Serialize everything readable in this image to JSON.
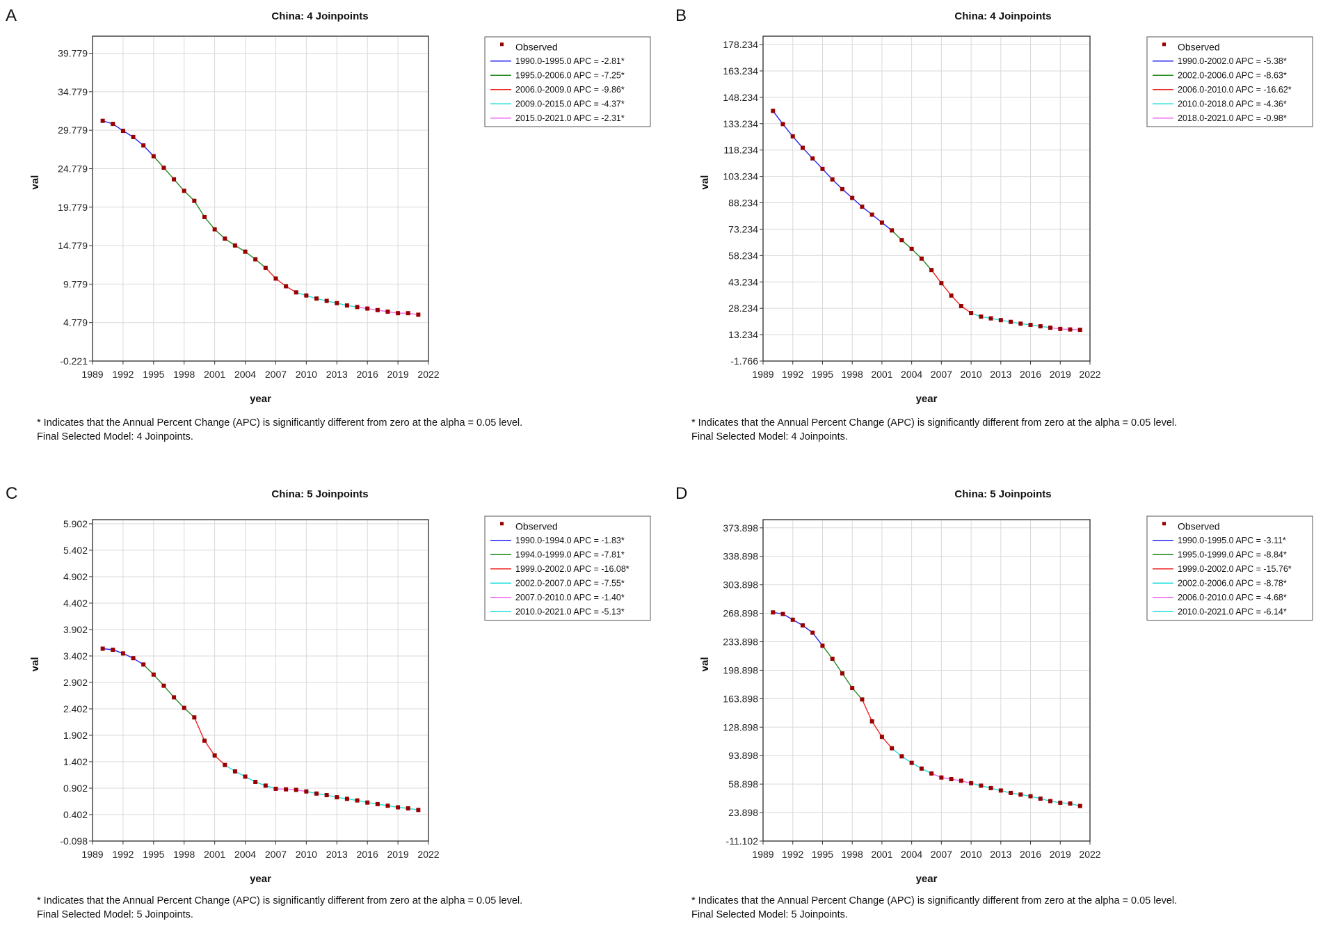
{
  "note_text": "* Indicates that the Annual Percent Change (APC) is significantly different from zero at the alpha = 0.05 level.",
  "legend_observed": "Observed",
  "segment_colors": [
    "#2222ee",
    "#228822",
    "#ee2222",
    "#22dddd",
    "#ee66ee",
    "#22dddd"
  ],
  "marker_color": "#990000",
  "chart_data": [
    {
      "panel": "A",
      "type": "line",
      "title": "China: 4 Joinpoints",
      "xlabel": "year",
      "ylabel": "val",
      "xlim": [
        1989,
        2022
      ],
      "xticks": [
        1989,
        1992,
        1995,
        1998,
        2001,
        2004,
        2007,
        2010,
        2013,
        2016,
        2019,
        2022
      ],
      "ylim": [
        -0.221,
        42.0
      ],
      "yticks": [
        "-0.221",
        "4.779",
        "9.779",
        "14.779",
        "19.779",
        "24.779",
        "29.779",
        "34.779",
        "39.779"
      ],
      "x": [
        1990,
        1991,
        1992,
        1993,
        1994,
        1995,
        1996,
        1997,
        1998,
        1999,
        2000,
        2001,
        2002,
        2003,
        2004,
        2005,
        2006,
        2007,
        2008,
        2009,
        2010,
        2011,
        2012,
        2013,
        2014,
        2015,
        2016,
        2017,
        2018,
        2019,
        2020,
        2021
      ],
      "observed": [
        31.0,
        30.6,
        29.7,
        28.9,
        27.8,
        26.4,
        24.9,
        23.4,
        21.9,
        20.6,
        18.5,
        16.9,
        15.7,
        14.8,
        14.0,
        13.0,
        11.9,
        10.5,
        9.5,
        8.7,
        8.3,
        7.9,
        7.6,
        7.3,
        7.0,
        6.8,
        6.6,
        6.4,
        6.2,
        6.0,
        6.0,
        5.8
      ],
      "joinpoints": [
        1995,
        2006,
        2009,
        2015
      ],
      "segments": [
        {
          "label": "1990.0-1995.0 APC  =  -2.81*",
          "start": 1990,
          "end": 1995
        },
        {
          "label": "1995.0-2006.0 APC  =  -7.25*",
          "start": 1995,
          "end": 2006
        },
        {
          "label": "2006.0-2009.0 APC  =  -9.86*",
          "start": 2006,
          "end": 2009
        },
        {
          "label": "2009.0-2015.0 APC  =  -4.37*",
          "start": 2009,
          "end": 2015
        },
        {
          "label": "2015.0-2021.0 APC  =  -2.31*",
          "start": 2015,
          "end": 2021
        }
      ],
      "model_text": "Final Selected Model: 4 Joinpoints."
    },
    {
      "panel": "B",
      "type": "line",
      "title": "China: 4 Joinpoints",
      "xlabel": "year",
      "ylabel": "val",
      "xlim": [
        1989,
        2022
      ],
      "xticks": [
        1989,
        1992,
        1995,
        1998,
        2001,
        2004,
        2007,
        2010,
        2013,
        2016,
        2019,
        2022
      ],
      "ylim": [
        -1.766,
        183.0
      ],
      "yticks": [
        "-1.766",
        "13.234",
        "28.234",
        "43.234",
        "58.234",
        "73.234",
        "88.234",
        "103.234",
        "118.234",
        "133.234",
        "148.234",
        "163.234",
        "178.234"
      ],
      "x": [
        1990,
        1991,
        1992,
        1993,
        1994,
        1995,
        1996,
        1997,
        1998,
        1999,
        2000,
        2001,
        2002,
        2003,
        2004,
        2005,
        2006,
        2007,
        2008,
        2009,
        2010,
        2011,
        2012,
        2013,
        2014,
        2015,
        2016,
        2017,
        2018,
        2019,
        2020,
        2021
      ],
      "observed": [
        140.5,
        133.0,
        126.0,
        119.5,
        113.5,
        107.5,
        101.5,
        96.0,
        91.0,
        86.0,
        81.5,
        77.0,
        72.5,
        67.0,
        62.0,
        56.5,
        50.0,
        42.5,
        35.5,
        29.5,
        25.5,
        23.5,
        22.5,
        21.5,
        20.5,
        19.5,
        18.8,
        18.0,
        17.2,
        16.5,
        16.2,
        16.0
      ],
      "joinpoints": [
        2002,
        2006,
        2010,
        2018
      ],
      "segments": [
        {
          "label": "1990.0-2002.0 APC  =  -5.38*",
          "start": 1990,
          "end": 2002
        },
        {
          "label": "2002.0-2006.0 APC  =  -8.63*",
          "start": 2002,
          "end": 2006
        },
        {
          "label": "2006.0-2010.0 APC  =  -16.62*",
          "start": 2006,
          "end": 2010
        },
        {
          "label": "2010.0-2018.0 APC  =  -4.36*",
          "start": 2010,
          "end": 2018
        },
        {
          "label": "2018.0-2021.0 APC  =  -0.98*",
          "start": 2018,
          "end": 2021
        }
      ],
      "model_text": "Final Selected Model: 4 Joinpoints."
    },
    {
      "panel": "C",
      "type": "line",
      "title": "China: 5 Joinpoints",
      "xlabel": "year",
      "ylabel": "val",
      "xlim": [
        1989,
        2022
      ],
      "xticks": [
        1989,
        1992,
        1995,
        1998,
        2001,
        2004,
        2007,
        2010,
        2013,
        2016,
        2019,
        2022
      ],
      "ylim": [
        -0.098,
        5.98
      ],
      "yticks": [
        "-0.098",
        "0.402",
        "0.902",
        "1.402",
        "1.902",
        "2.402",
        "2.902",
        "3.402",
        "3.902",
        "4.402",
        "4.902",
        "5.402",
        "5.902"
      ],
      "x": [
        1990,
        1991,
        1992,
        1993,
        1994,
        1995,
        1996,
        1997,
        1998,
        1999,
        2000,
        2001,
        2002,
        2003,
        2004,
        2005,
        2006,
        2007,
        2008,
        2009,
        2010,
        2011,
        2012,
        2013,
        2014,
        2015,
        2016,
        2017,
        2018,
        2019,
        2020,
        2021
      ],
      "observed": [
        3.54,
        3.52,
        3.45,
        3.36,
        3.24,
        3.05,
        2.84,
        2.62,
        2.42,
        2.24,
        1.8,
        1.52,
        1.34,
        1.22,
        1.12,
        1.02,
        0.95,
        0.89,
        0.88,
        0.87,
        0.84,
        0.8,
        0.77,
        0.73,
        0.7,
        0.67,
        0.63,
        0.6,
        0.57,
        0.54,
        0.52,
        0.49
      ],
      "joinpoints": [
        1994,
        1999,
        2002,
        2007,
        2010
      ],
      "segments": [
        {
          "label": "1990.0-1994.0 APC  =  -1.83*",
          "start": 1990,
          "end": 1994
        },
        {
          "label": "1994.0-1999.0 APC  =  -7.81*",
          "start": 1994,
          "end": 1999
        },
        {
          "label": "1999.0-2002.0 APC  =  -16.08*",
          "start": 1999,
          "end": 2002
        },
        {
          "label": "2002.0-2007.0 APC  =  -7.55*",
          "start": 2002,
          "end": 2007
        },
        {
          "label": "2007.0-2010.0 APC  =  -1.40*",
          "start": 2007,
          "end": 2010
        },
        {
          "label": "2010.0-2021.0 APC  =  -5.13*",
          "start": 2010,
          "end": 2021
        }
      ],
      "model_text": "Final Selected Model: 5 Joinpoints."
    },
    {
      "panel": "D",
      "type": "line",
      "title": "China: 5 Joinpoints",
      "xlabel": "year",
      "ylabel": "val",
      "xlim": [
        1989,
        2022
      ],
      "xticks": [
        1989,
        1992,
        1995,
        1998,
        2001,
        2004,
        2007,
        2010,
        2013,
        2016,
        2019,
        2022
      ],
      "ylim": [
        -11.102,
        384.0
      ],
      "yticks": [
        "-11.102",
        "23.898",
        "58.898",
        "93.898",
        "128.898",
        "163.898",
        "198.898",
        "233.898",
        "268.898",
        "303.898",
        "338.898",
        "373.898"
      ],
      "x": [
        1990,
        1991,
        1992,
        1993,
        1994,
        1995,
        1996,
        1997,
        1998,
        1999,
        2000,
        2001,
        2002,
        2003,
        2004,
        2005,
        2006,
        2007,
        2008,
        2009,
        2010,
        2011,
        2012,
        2013,
        2014,
        2015,
        2016,
        2017,
        2018,
        2019,
        2020,
        2021
      ],
      "observed": [
        270.0,
        268.0,
        261.0,
        254.0,
        245.0,
        229.0,
        213.0,
        195.0,
        177.0,
        163.0,
        136.0,
        117.0,
        103.0,
        93.0,
        85.0,
        78.0,
        72.0,
        67.0,
        65.0,
        63.0,
        60.0,
        57.0,
        54.0,
        51.0,
        48.0,
        46.0,
        44.0,
        41.0,
        38.0,
        36.0,
        35.0,
        32.0
      ],
      "joinpoints": [
        1995,
        1999,
        2002,
        2006,
        2010
      ],
      "segments": [
        {
          "label": "1990.0-1995.0 APC  =  -3.11*",
          "start": 1990,
          "end": 1995
        },
        {
          "label": "1995.0-1999.0 APC  =  -8.84*",
          "start": 1995,
          "end": 1999
        },
        {
          "label": "1999.0-2002.0 APC  =  -15.76*",
          "start": 1999,
          "end": 2002
        },
        {
          "label": "2002.0-2006.0 APC  =  -8.78*",
          "start": 2002,
          "end": 2006
        },
        {
          "label": "2006.0-2010.0 APC  =  -4.68*",
          "start": 2006,
          "end": 2010
        },
        {
          "label": "2010.0-2021.0 APC  =  -6.14*",
          "start": 2010,
          "end": 2021
        }
      ],
      "model_text": "Final Selected Model: 5 Joinpoints."
    }
  ]
}
